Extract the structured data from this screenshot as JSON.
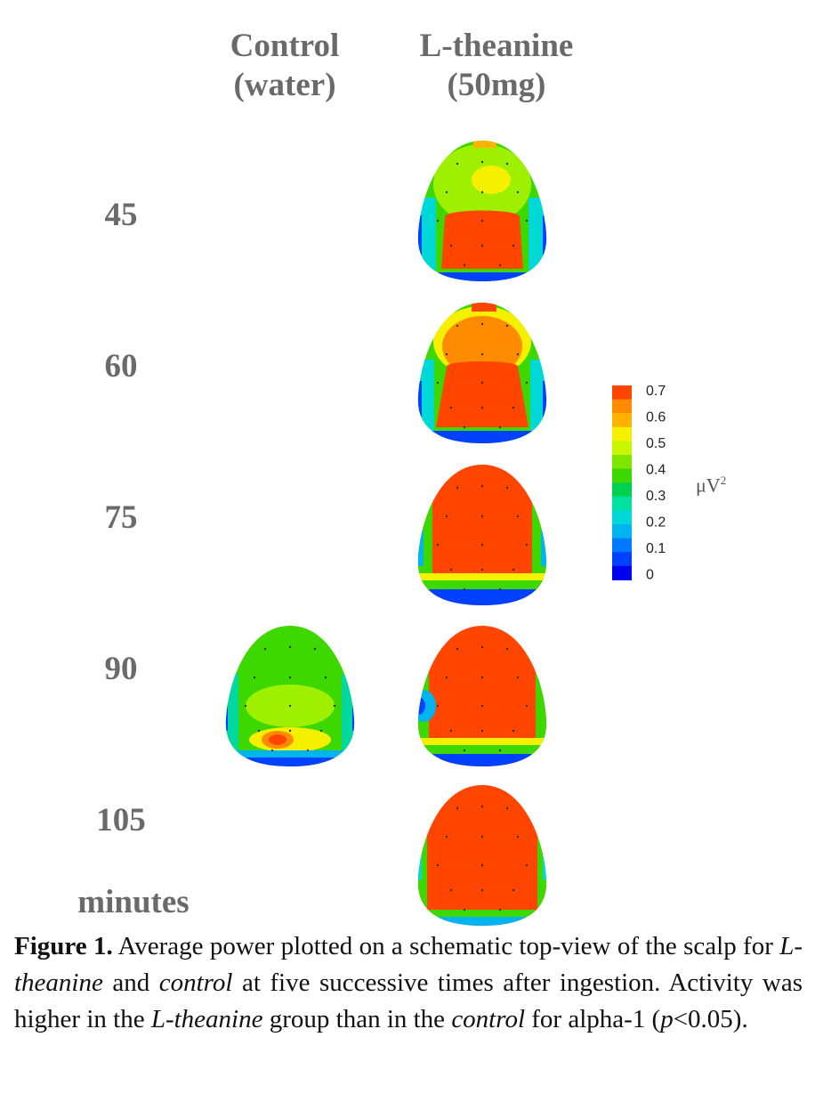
{
  "columns": {
    "control": {
      "line1": "Control",
      "line2": "(water)"
    },
    "theanine": {
      "line1": "L-theanine",
      "line2": "(50mg)"
    }
  },
  "rows": [
    "45",
    "60",
    "75",
    "90",
    "105"
  ],
  "time_unit": "minutes",
  "maps": {
    "theanine": [
      "45",
      "60",
      "75",
      "90",
      "105"
    ],
    "control": [
      "90"
    ]
  },
  "colorbar": {
    "ticks": [
      "0.7",
      "0.6",
      "0.5",
      "0.4",
      "0.3",
      "0.2",
      "0.1",
      "0"
    ],
    "unit": "μV",
    "unit_exp": "2",
    "colors": [
      "#ff4500",
      "#ff8c00",
      "#ffb300",
      "#f5f000",
      "#c8f500",
      "#7ee600",
      "#3cd800",
      "#00d050",
      "#00e0a0",
      "#00d8d8",
      "#00b4f0",
      "#0078ff",
      "#0040ff",
      "#0000f0"
    ]
  },
  "caption": {
    "label": "Figure 1.",
    "p1": "  Average power plotted on a schematic top-view of the scalp for ",
    "em1": "L-theanine",
    "p2": " and ",
    "em2": "control",
    "p3": " at five successive times after ingestion. Activity was higher in the ",
    "em3": "L-theanine",
    "p4": " group than in the ",
    "em4": "control",
    "p5": " for alpha-1 (",
    "em5": "p",
    "p6": "<0.05)."
  }
}
